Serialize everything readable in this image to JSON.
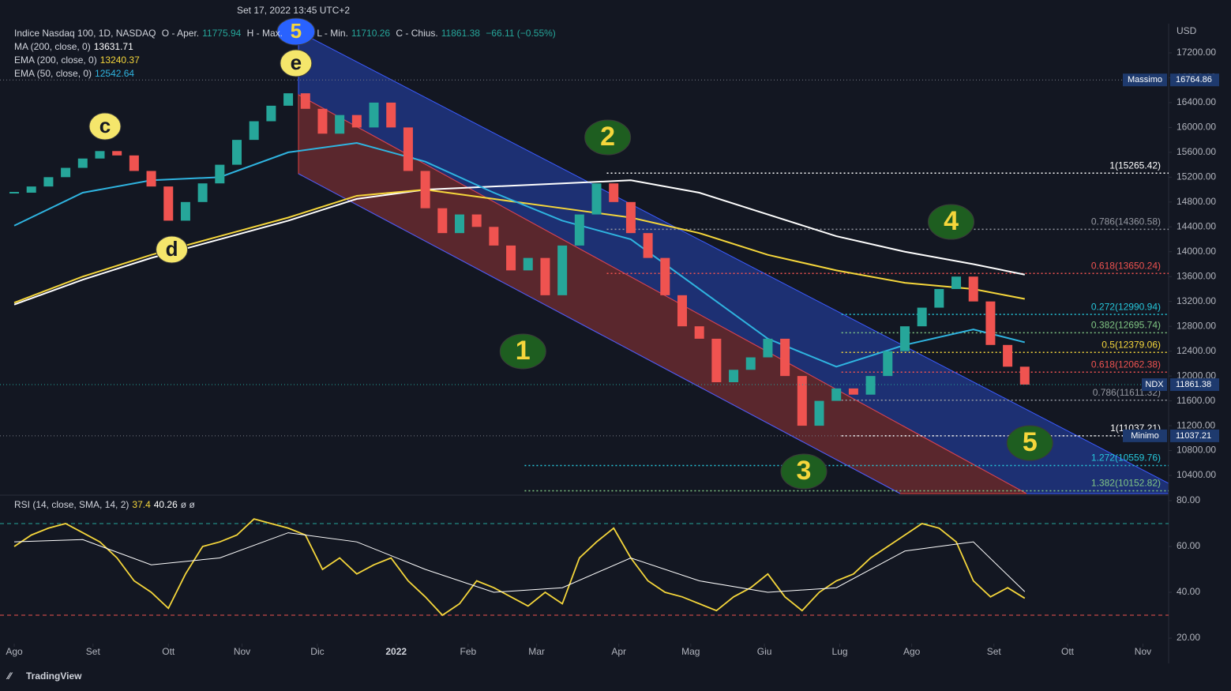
{
  "header": {
    "datetime": "Set 17, 2022 13:45 UTC+2",
    "symbol": "Indice Nasdaq 100, 1D, NASDAQ",
    "open_label": "O - Aper.",
    "open": 11775.94,
    "high_label": "H - Max.",
    "low_label": "L - Min.",
    "low": 11710.26,
    "close_label": "C - Chius.",
    "close": 11861.38,
    "change": "−66.11 (−0.55%)",
    "currency": "USD",
    "brand": "TradingView"
  },
  "chart_data": [
    {
      "type": "candlestick",
      "name": "NDX",
      "x": [
        0,
        1,
        2,
        3,
        4,
        5,
        6,
        7,
        8,
        9,
        10,
        11,
        12,
        13,
        14,
        15,
        16,
        17,
        18,
        19,
        20,
        21,
        22,
        23,
        24,
        25,
        26,
        27,
        28,
        29,
        30,
        31,
        32,
        33,
        34,
        35,
        36,
        37,
        38,
        39,
        40,
        41,
        42,
        43,
        44,
        45,
        46,
        47,
        48,
        49,
        50,
        51,
        52,
        53,
        54,
        55,
        56,
        57,
        58,
        59
      ],
      "values": [
        14950,
        15050,
        15200,
        15350,
        15500,
        15620,
        15550,
        15300,
        15050,
        14500,
        14800,
        15100,
        15400,
        15800,
        16100,
        16350,
        16550,
        16300,
        15900,
        16200,
        16000,
        16400,
        16000,
        15300,
        14700,
        14300,
        14600,
        14400,
        14100,
        13700,
        13900,
        13300,
        14100,
        14600,
        15100,
        14800,
        14300,
        13900,
        13300,
        12800,
        12600,
        11900,
        12100,
        12300,
        12600,
        12000,
        11200,
        11600,
        11800,
        11700,
        12000,
        12400,
        12800,
        13100,
        13400,
        13600,
        13200,
        12500,
        12150,
        11861.38
      ],
      "up_color": "#26a69a",
      "down_color": "#ef5350",
      "series": [
        {
          "name": "MA (200, close, 0)",
          "color": "#ffffff",
          "x": [
            0,
            4,
            8,
            12,
            16,
            20,
            24,
            28,
            32,
            36,
            40,
            44,
            48,
            52,
            56,
            59
          ],
          "values": [
            13150,
            13550,
            13900,
            14200,
            14500,
            14850,
            15000,
            15050,
            15100,
            15150,
            14950,
            14600,
            14250,
            14000,
            13800,
            13631.71
          ]
        },
        {
          "name": "EMA (200, close, 0)",
          "color": "#f5d63b",
          "x": [
            0,
            4,
            8,
            12,
            16,
            20,
            24,
            28,
            32,
            36,
            40,
            44,
            48,
            52,
            56,
            59
          ],
          "values": [
            13180,
            13600,
            13950,
            14250,
            14550,
            14900,
            15000,
            14850,
            14700,
            14550,
            14300,
            13950,
            13700,
            13500,
            13400,
            13240.37
          ]
        },
        {
          "name": "EMA (50, close, 0)",
          "color": "#2fb4e0",
          "x": [
            0,
            4,
            8,
            12,
            16,
            20,
            24,
            28,
            32,
            36,
            40,
            44,
            48,
            52,
            56,
            59
          ],
          "values": [
            14420,
            14950,
            15150,
            15200,
            15600,
            15750,
            15450,
            14950,
            14500,
            14200,
            13400,
            12600,
            12150,
            12500,
            12750,
            12542.64
          ]
        }
      ],
      "xlim": [
        -0.37,
        67.4
      ],
      "ylim": [
        10108,
        17670
      ],
      "xticks": [
        {
          "value": 0,
          "label": "Ago"
        },
        {
          "value": 4.6,
          "label": "Set"
        },
        {
          "value": 9,
          "label": "Ott"
        },
        {
          "value": 13.3,
          "label": "Nov"
        },
        {
          "value": 17.7,
          "label": "Dic"
        },
        {
          "value": 22.3,
          "label": "2022"
        },
        {
          "value": 26.5,
          "label": "Feb"
        },
        {
          "value": 30.5,
          "label": "Mar"
        },
        {
          "value": 35.3,
          "label": "Apr"
        },
        {
          "value": 39.5,
          "label": "Mag"
        },
        {
          "value": 43.8,
          "label": "Giu"
        },
        {
          "value": 48.2,
          "label": "Lug"
        },
        {
          "value": 52.4,
          "label": "Ago"
        },
        {
          "value": 57.2,
          "label": "Set"
        },
        {
          "value": 61.5,
          "label": "Ott"
        },
        {
          "value": 65.9,
          "label": "Nov"
        }
      ],
      "yticks": [
        {
          "value": 10400,
          "label": "10400.00"
        },
        {
          "value": 10800,
          "label": "10800.00"
        },
        {
          "value": 11200,
          "label": "11200.00"
        },
        {
          "value": 11600,
          "label": "11600.00"
        },
        {
          "value": 12000,
          "label": "12000.00"
        },
        {
          "value": 12400,
          "label": "12400.00"
        },
        {
          "value": 12800,
          "label": "12800.00"
        },
        {
          "value": 13200,
          "label": "13200.00"
        },
        {
          "value": 13600,
          "label": "13600.00"
        },
        {
          "value": 14000,
          "label": "14000.00"
        },
        {
          "value": 14400,
          "label": "14400.00"
        },
        {
          "value": 14800,
          "label": "14800.00"
        },
        {
          "value": 15200,
          "label": "15200.00"
        },
        {
          "value": 15600,
          "label": "15600.00"
        },
        {
          "value": 16000,
          "label": "16000.00"
        },
        {
          "value": 16400,
          "label": "16400.00"
        },
        {
          "value": 16800,
          "label": "16800.00"
        },
        {
          "value": 17200,
          "label": "17200.00"
        }
      ],
      "fib_levels": [
        {
          "value": 15265.42,
          "label": "1(15265.42)",
          "color": "#ffffff",
          "x": 34.6
        },
        {
          "value": 14360.58,
          "label": "0.786(14360.58)",
          "color": "#9598a1",
          "x": 34.6
        },
        {
          "value": 13650.24,
          "label": "0.618(13650.24)",
          "color": "#ef5350",
          "x": 34.6
        },
        {
          "value": 12990.94,
          "label": "0.272(12990.94)",
          "color": "#26c6da",
          "x": 48.3
        },
        {
          "value": 12695.74,
          "label": "0.382(12695.74)",
          "color": "#81c784",
          "x": 48.3
        },
        {
          "value": 12379.06,
          "label": "0.5(12379.06)",
          "color": "#f5d63b",
          "x": 48.3
        },
        {
          "value": 12062.38,
          "label": "0.618(12062.38)",
          "color": "#ef5350",
          "x": 48.3
        },
        {
          "value": 11611.32,
          "label": "0.786(11611.32)",
          "color": "#9598a1",
          "x": 48.3
        },
        {
          "value": 11037.21,
          "label": "1(11037.21)",
          "color": "#ffffff",
          "x": 48.3
        },
        {
          "value": 10559.76,
          "label": "1.272(10559.76)",
          "color": "#26c6da",
          "x": 29.8
        },
        {
          "value": 10152.82,
          "label": "1.382(10152.82)",
          "color": "#81c784",
          "x": 29.8
        }
      ],
      "price_tags": [
        {
          "name": "Massimo",
          "value": 16764.86
        },
        {
          "name": "Minimo",
          "value": 11037.21
        }
      ],
      "annotations": [
        {
          "text": "1",
          "x": 29.7,
          "y": 12396,
          "style": "green"
        },
        {
          "text": "2",
          "x": 34.65,
          "y": 15840,
          "style": "green"
        },
        {
          "text": "3",
          "x": 46.1,
          "y": 10464,
          "style": "green"
        },
        {
          "text": "4",
          "x": 54.7,
          "y": 14480,
          "style": "green"
        },
        {
          "text": "5",
          "x": 59.3,
          "y": 10921,
          "style": "green"
        },
        {
          "text": "5",
          "x": 16.45,
          "y": 17543,
          "style": "blue"
        },
        {
          "text": "c",
          "x": 5.3,
          "y": 16018,
          "style": "yellow"
        },
        {
          "text": "d",
          "x": 9.2,
          "y": 14035,
          "style": "yellow"
        },
        {
          "text": "e",
          "x": 16.45,
          "y": 17035,
          "style": "yellow"
        }
      ]
    },
    {
      "type": "rsi",
      "title": "RSI (14, close, SMA, 14, 2)",
      "extra": "ø ø",
      "series": [
        {
          "name": "RSI",
          "color": "#f5d63b",
          "x": [
            0,
            1,
            2,
            3,
            4,
            5,
            6,
            7,
            8,
            9,
            10,
            11,
            12,
            13,
            14,
            15,
            16,
            17,
            18,
            19,
            20,
            21,
            22,
            23,
            24,
            25,
            26,
            27,
            28,
            29,
            30,
            31,
            32,
            33,
            34,
            35,
            36,
            37,
            38,
            39,
            40,
            41,
            42,
            43,
            44,
            45,
            46,
            47,
            48,
            49,
            50,
            51,
            52,
            53,
            54,
            55,
            56,
            57,
            58,
            59
          ],
          "values": [
            60,
            65,
            68,
            70,
            66,
            62,
            55,
            45,
            40,
            33,
            48,
            60,
            62,
            65,
            72,
            70,
            68,
            65,
            50,
            55,
            48,
            52,
            55,
            45,
            38,
            30,
            35,
            45,
            42,
            38,
            34,
            40,
            35,
            55,
            62,
            68,
            55,
            45,
            40,
            38,
            35,
            32,
            38,
            42,
            48,
            38,
            32,
            40,
            45,
            48,
            55,
            60,
            65,
            70,
            68,
            62,
            45,
            38,
            42,
            37.4
          ]
        },
        {
          "name": "SMA",
          "color": "#ffffff",
          "x": [
            0,
            4,
            8,
            12,
            16,
            20,
            24,
            28,
            32,
            36,
            40,
            44,
            48,
            52,
            56,
            59
          ],
          "values": [
            62,
            63,
            52,
            55,
            66,
            62,
            50,
            40,
            42,
            55,
            45,
            40,
            42,
            58,
            62,
            40.26
          ]
        }
      ],
      "ylim": [
        17.6,
        82.4
      ],
      "yticks": [
        {
          "value": 20,
          "label": "20.00"
        },
        {
          "value": 40,
          "label": "40.00"
        },
        {
          "value": 60,
          "label": "60.00"
        },
        {
          "value": 80,
          "label": "80.00"
        }
      ],
      "levels": [
        {
          "value": 70,
          "color": "#26a69a"
        },
        {
          "value": 30,
          "color": "#ef5350"
        }
      ]
    }
  ]
}
